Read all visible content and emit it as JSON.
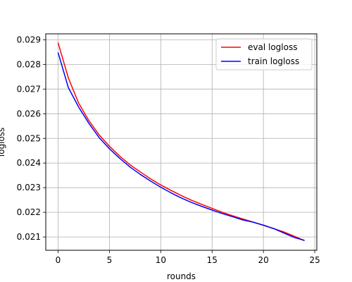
{
  "chart_data": {
    "type": "line",
    "title": "",
    "xlabel": "rounds",
    "ylabel": "logloss",
    "xlim": [
      -1.2,
      25.2
    ],
    "ylim": [
      0.02046,
      0.02924
    ],
    "xticks": [
      0,
      5,
      10,
      15,
      20,
      25
    ],
    "yticks": [
      0.021,
      0.022,
      0.023,
      0.024,
      0.025,
      0.026,
      0.027,
      0.028,
      0.029
    ],
    "xtick_labels": [
      "0",
      "5",
      "10",
      "15",
      "20",
      "25"
    ],
    "ytick_labels": [
      "0.021",
      "0.022",
      "0.023",
      "0.024",
      "0.025",
      "0.026",
      "0.027",
      "0.028",
      "0.029"
    ],
    "grid": true,
    "legend_position": "top-right",
    "x": [
      0,
      1,
      2,
      3,
      4,
      5,
      6,
      7,
      8,
      9,
      10,
      11,
      12,
      13,
      14,
      15,
      16,
      17,
      18,
      19,
      20,
      21,
      22,
      23,
      24
    ],
    "series": [
      {
        "name": "eval logloss",
        "color": "#ff0000",
        "values": [
          0.02888,
          0.02745,
          0.02643,
          0.02572,
          0.02514,
          0.02468,
          0.02428,
          0.02393,
          0.02364,
          0.02336,
          0.02311,
          0.02289,
          0.02268,
          0.02249,
          0.02232,
          0.02216,
          0.022,
          0.02186,
          0.02173,
          0.0216,
          0.02147,
          0.02134,
          0.0212,
          0.02103,
          0.02085
        ]
      },
      {
        "name": "train logloss",
        "color": "#0000ff",
        "values": [
          0.02848,
          0.02706,
          0.02627,
          0.02561,
          0.02503,
          0.02458,
          0.02419,
          0.02384,
          0.02354,
          0.02327,
          0.02302,
          0.02279,
          0.02258,
          0.0224,
          0.02224,
          0.02209,
          0.02195,
          0.02182,
          0.02169,
          0.0216,
          0.02148,
          0.02134,
          0.02116,
          0.02098,
          0.02086
        ]
      }
    ]
  }
}
